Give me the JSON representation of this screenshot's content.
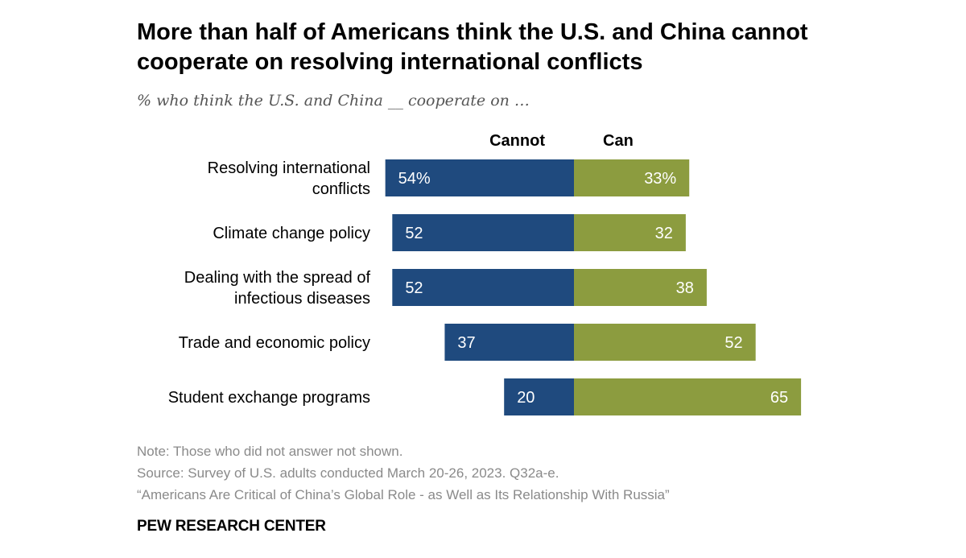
{
  "title": "More than half of Americans think the U.S. and China cannot cooperate on resolving international conflicts",
  "subtitle": "% who think the U.S. and China __ cooperate on …",
  "colors": {
    "cannot": "#1f4a7e",
    "can": "#8c9c3f",
    "label_text": "#ffffff",
    "category_text": "#000000"
  },
  "chart_data": {
    "type": "bar",
    "orientation": "horizontal-diverging",
    "categories": [
      "Resolving international conflicts",
      "Climate change policy",
      "Dealing with the spread of infectious diseases",
      "Trade and economic policy",
      "Student exchange programs"
    ],
    "series": [
      {
        "name": "Cannot",
        "values": [
          54,
          52,
          52,
          37,
          20
        ],
        "labels": [
          "54%",
          "52",
          "52",
          "37",
          "20"
        ]
      },
      {
        "name": "Can",
        "values": [
          33,
          32,
          38,
          52,
          65
        ],
        "labels": [
          "33%",
          "32",
          "38",
          "52",
          "65"
        ]
      }
    ],
    "unit": "%"
  },
  "notes": {
    "note": "Note: Those who did not answer not shown.",
    "source": "Source: Survey of U.S. adults conducted March 20-26, 2023. Q32a-e.",
    "report": "“Americans Are Critical of China’s Global Role - as Well as Its Relationship With Russia”"
  },
  "brand": "PEW RESEARCH CENTER"
}
